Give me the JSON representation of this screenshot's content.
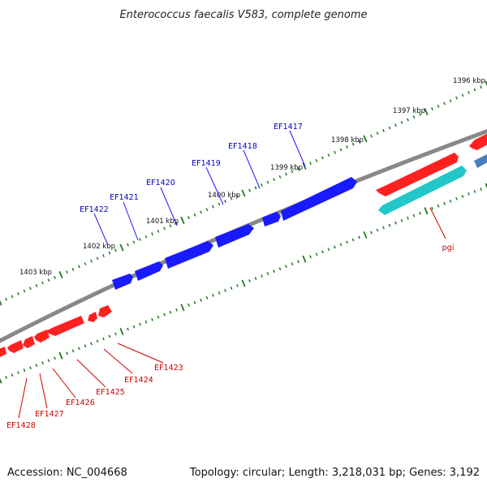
{
  "title": "Enterococcus faecalis V583, complete genome",
  "footer": {
    "accession": "Accession: NC_004668",
    "summary": "Topology: circular; Length: 3,218,031 bp; Genes: 3,192"
  },
  "colors": {
    "background": "#ffffff",
    "backbone": "#888888",
    "tick": "#1f7a1f",
    "forward_gene": "#1a1aff",
    "reverse_gene": "#ff2020",
    "rna_gene": "#20c8c8",
    "other_gene": "#4a7fbf",
    "forward_label": "#0000c0",
    "reverse_label": "#cc0000"
  },
  "ticks": {
    "labels": [
      "1396 kbp",
      "1397 kbp",
      "1398 kbp",
      "1399 kbp",
      "1400 kbp",
      "1401 kbp",
      "1402 kbp",
      "1403 kbp"
    ]
  },
  "genes": {
    "forward_labels": [
      "EF1417",
      "EF1418",
      "EF1419",
      "EF1420",
      "EF1421",
      "EF1422"
    ],
    "reverse_labels": [
      "pgi",
      "EF1423",
      "EF1424",
      "EF1425",
      "EF1426",
      "EF1427",
      "EF1428"
    ]
  }
}
